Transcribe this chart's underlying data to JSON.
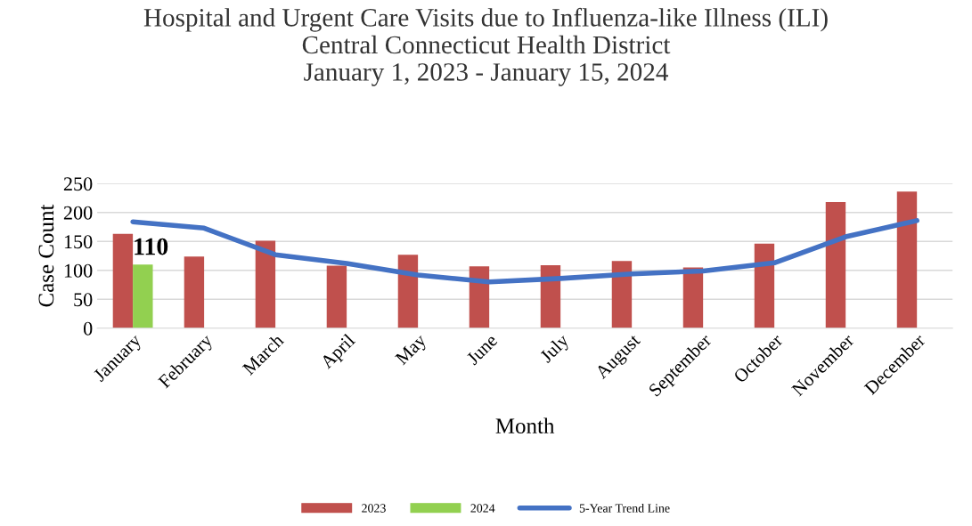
{
  "chart_data": {
    "type": "bar",
    "title": "Hospital and Urgent Care Visits due to Influenza-like Illness (ILI)\nCentral Connecticut Health District\nJanuary 1, 2023 - January 15, 2024",
    "xlabel": "Month",
    "ylabel": "Case Count",
    "categories": [
      "January",
      "February",
      "March",
      "April",
      "May",
      "June",
      "July",
      "August",
      "September",
      "October",
      "November",
      "December"
    ],
    "series": [
      {
        "name": "2023",
        "color": "#c0504d",
        "values": [
          163,
          124,
          151,
          108,
          127,
          107,
          109,
          116,
          105,
          146,
          218,
          236
        ]
      },
      {
        "name": "2024",
        "color": "#92d050",
        "values": [
          110,
          null,
          null,
          null,
          null,
          null,
          null,
          null,
          null,
          null,
          null,
          null
        ],
        "value_labels": [
          "110",
          null,
          null,
          null,
          null,
          null,
          null,
          null,
          null,
          null,
          null,
          null
        ]
      },
      {
        "name": "5-Year Trend Line",
        "type": "line",
        "color": "#4472c4",
        "values": [
          184,
          173,
          127,
          112,
          92,
          80,
          86,
          94,
          99,
          113,
          158,
          186
        ]
      }
    ],
    "ylim": [
      0,
      250
    ],
    "yticks": [
      0,
      50,
      100,
      150,
      200,
      250
    ],
    "grid": "y",
    "legend": "bottom",
    "marker": "none",
    "line_style": "solid"
  }
}
